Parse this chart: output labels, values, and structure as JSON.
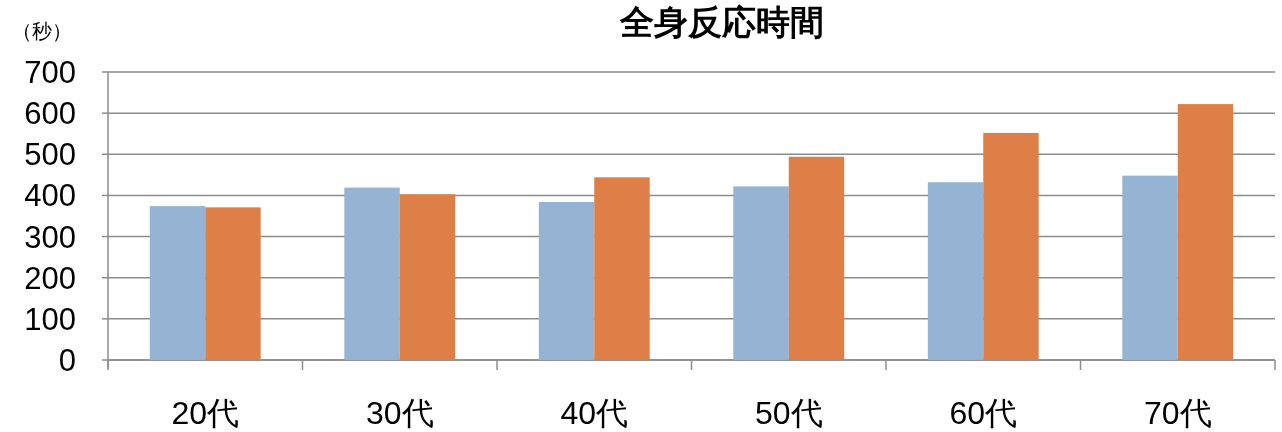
{
  "chart_data": {
    "type": "bar",
    "title": "全身反応時間",
    "ylabel": "（秒）",
    "categories": [
      "20代",
      "30代",
      "40代",
      "50代",
      "60代",
      "70代"
    ],
    "series": [
      {
        "color": "#95b3d3",
        "values": [
          374,
          419,
          384,
          422,
          432,
          448
        ]
      },
      {
        "color": "#dd7f47",
        "values": [
          371,
          403,
          444,
          494,
          552,
          622
        ]
      }
    ],
    "ylim": [
      0,
      700
    ],
    "yticks": [
      0,
      100,
      200,
      300,
      400,
      500,
      600,
      700
    ],
    "grid": "y"
  }
}
